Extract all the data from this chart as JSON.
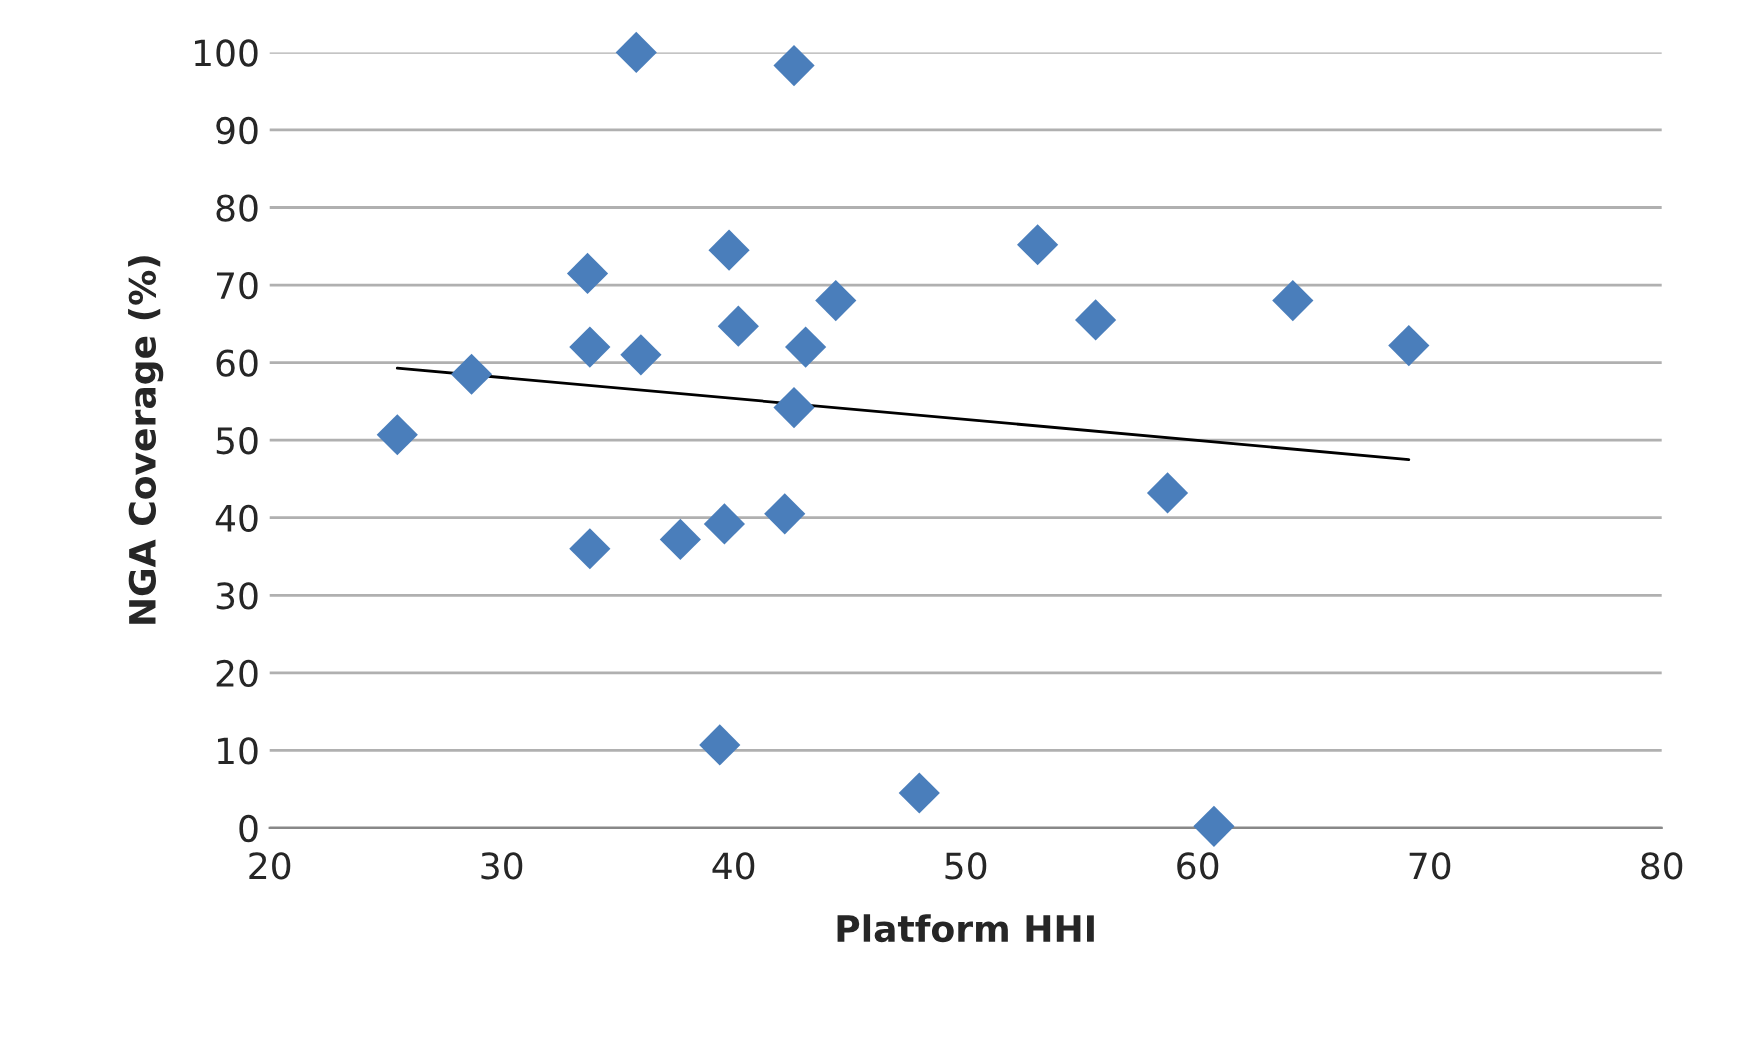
{
  "chart_data": {
    "type": "scatter",
    "xlabel": "Platform HHI",
    "ylabel": "NGA Coverage (%)",
    "xlim": [
      20,
      80
    ],
    "xticks": [
      20,
      30,
      40,
      50,
      60,
      70,
      80
    ],
    "ylim": [
      0,
      100
    ],
    "yticks": [
      0,
      10,
      20,
      30,
      40,
      50,
      60,
      70,
      80,
      90,
      100
    ],
    "grid": "y",
    "legend": false,
    "marker": "diamond",
    "series": [
      {
        "color": "#4a7ebb",
        "x": [
          25.5,
          28.7,
          33.7,
          33.8,
          33.8,
          35.8,
          36.0,
          37.7,
          39.4,
          39.6,
          39.8,
          40.2,
          42.2,
          42.6,
          42.6,
          43.1,
          44.4,
          48.0,
          53.1,
          55.6,
          58.7,
          60.7,
          64.1,
          69.1
        ],
        "values": [
          50.7,
          58.5,
          71.5,
          62,
          36,
          100,
          61,
          37.2,
          10.7,
          39.2,
          74.5,
          64.7,
          40.5,
          98.3,
          54.2,
          62,
          68,
          4.5,
          75.2,
          65.5,
          43.2,
          0.2,
          68,
          62.2
        ]
      },
      {
        "type": "line",
        "color": "#000000",
        "x": [
          25.5,
          69.1
        ],
        "values": [
          59.3,
          47.5
        ],
        "marker": "none",
        "line_style": "solid"
      }
    ]
  }
}
